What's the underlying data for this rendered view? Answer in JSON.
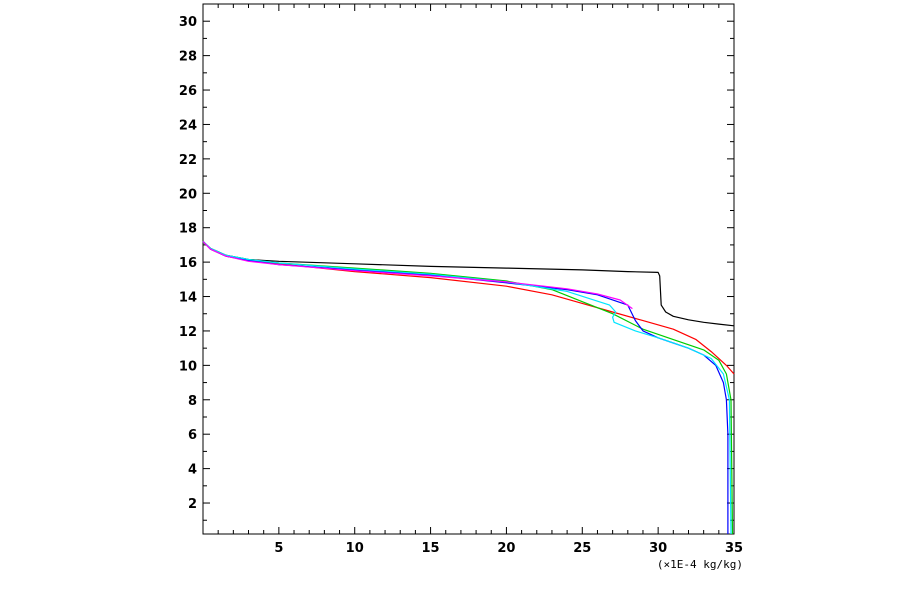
{
  "chart_data": {
    "type": "line",
    "title": "",
    "xlabel": "",
    "ylabel": "",
    "x_unit_label": "(×1E-4 kg/kg)",
    "xlim": [
      0,
      35
    ],
    "ylim": [
      0.2,
      31
    ],
    "x_ticks": [
      5,
      10,
      15,
      20,
      25,
      30,
      35
    ],
    "y_ticks": [
      2,
      4,
      6,
      8,
      10,
      12,
      14,
      16,
      18,
      20,
      22,
      24,
      26,
      28,
      30
    ],
    "grid": false,
    "legend": "none",
    "series": [
      {
        "color": "#000000",
        "points": [
          [
            0,
            17.2
          ],
          [
            0.5,
            16.8
          ],
          [
            1.5,
            16.4
          ],
          [
            3,
            16.15
          ],
          [
            5,
            16.05
          ],
          [
            10,
            15.9
          ],
          [
            15,
            15.75
          ],
          [
            20,
            15.65
          ],
          [
            25,
            15.55
          ],
          [
            28,
            15.45
          ],
          [
            30,
            15.4
          ],
          [
            30.1,
            15.2
          ],
          [
            30.2,
            13.5
          ],
          [
            30.5,
            13.1
          ],
          [
            31,
            12.85
          ],
          [
            32,
            12.65
          ],
          [
            33,
            12.5
          ],
          [
            34,
            12.4
          ],
          [
            35,
            12.3
          ]
        ]
      },
      {
        "color": "#ff0000",
        "points": [
          [
            0,
            17.2
          ],
          [
            0.5,
            16.75
          ],
          [
            1.5,
            16.35
          ],
          [
            3,
            16.1
          ],
          [
            5,
            15.9
          ],
          [
            10,
            15.45
          ],
          [
            15,
            15.1
          ],
          [
            20,
            14.6
          ],
          [
            23,
            14.1
          ],
          [
            25,
            13.6
          ],
          [
            27,
            13.1
          ],
          [
            29,
            12.6
          ],
          [
            31,
            12.1
          ],
          [
            32.5,
            11.5
          ],
          [
            33.5,
            10.8
          ],
          [
            34.5,
            10.0
          ],
          [
            35,
            9.5
          ]
        ]
      },
      {
        "color": "#00cc00",
        "points": [
          [
            0,
            17.2
          ],
          [
            0.5,
            16.8
          ],
          [
            1.5,
            16.4
          ],
          [
            3,
            16.15
          ],
          [
            5,
            15.95
          ],
          [
            10,
            15.65
          ],
          [
            15,
            15.35
          ],
          [
            20,
            14.9
          ],
          [
            23,
            14.4
          ],
          [
            25,
            13.7
          ],
          [
            27,
            13.0
          ],
          [
            29,
            12.1
          ],
          [
            31,
            11.5
          ],
          [
            33,
            10.9
          ],
          [
            34,
            10.3
          ],
          [
            34.5,
            9.5
          ],
          [
            34.8,
            8.0
          ],
          [
            34.9,
            0.2
          ]
        ]
      },
      {
        "color": "#0000ff",
        "points": [
          [
            0,
            17.2
          ],
          [
            0.5,
            16.75
          ],
          [
            1.5,
            16.35
          ],
          [
            3,
            16.1
          ],
          [
            5,
            15.85
          ],
          [
            10,
            15.55
          ],
          [
            15,
            15.25
          ],
          [
            20,
            14.8
          ],
          [
            24,
            14.4
          ],
          [
            26,
            14.1
          ],
          [
            28,
            13.5
          ],
          [
            28.5,
            12.6
          ],
          [
            29,
            12.0
          ],
          [
            30,
            11.6
          ],
          [
            31,
            11.3
          ],
          [
            32,
            11.0
          ],
          [
            33,
            10.6
          ],
          [
            33.8,
            10.0
          ],
          [
            34.3,
            9.0
          ],
          [
            34.5,
            8.0
          ],
          [
            34.6,
            6.0
          ],
          [
            34.6,
            0.2
          ]
        ]
      },
      {
        "color": "#00e5ff",
        "points": [
          [
            0,
            17.2
          ],
          [
            0.5,
            16.8
          ],
          [
            1.5,
            16.4
          ],
          [
            3,
            16.15
          ],
          [
            5,
            15.95
          ],
          [
            10,
            15.6
          ],
          [
            15,
            15.3
          ],
          [
            20,
            14.85
          ],
          [
            24,
            14.3
          ],
          [
            26.8,
            13.5
          ],
          [
            27.2,
            13.1
          ],
          [
            27,
            12.8
          ],
          [
            27.1,
            12.5
          ],
          [
            28.5,
            12.0
          ],
          [
            30,
            11.6
          ],
          [
            32,
            11.0
          ],
          [
            33.5,
            10.4
          ],
          [
            34.3,
            9.5
          ],
          [
            34.7,
            8.0
          ],
          [
            34.8,
            0.2
          ]
        ]
      },
      {
        "color": "#ff00ff",
        "points": [
          [
            0,
            17.2
          ],
          [
            0.5,
            16.75
          ],
          [
            1.5,
            16.35
          ],
          [
            3,
            16.05
          ],
          [
            5,
            15.85
          ],
          [
            10,
            15.5
          ],
          [
            15,
            15.2
          ],
          [
            20,
            14.85
          ],
          [
            24,
            14.45
          ],
          [
            26,
            14.15
          ],
          [
            27.5,
            13.8
          ],
          [
            28.3,
            13.3
          ]
        ]
      }
    ]
  }
}
